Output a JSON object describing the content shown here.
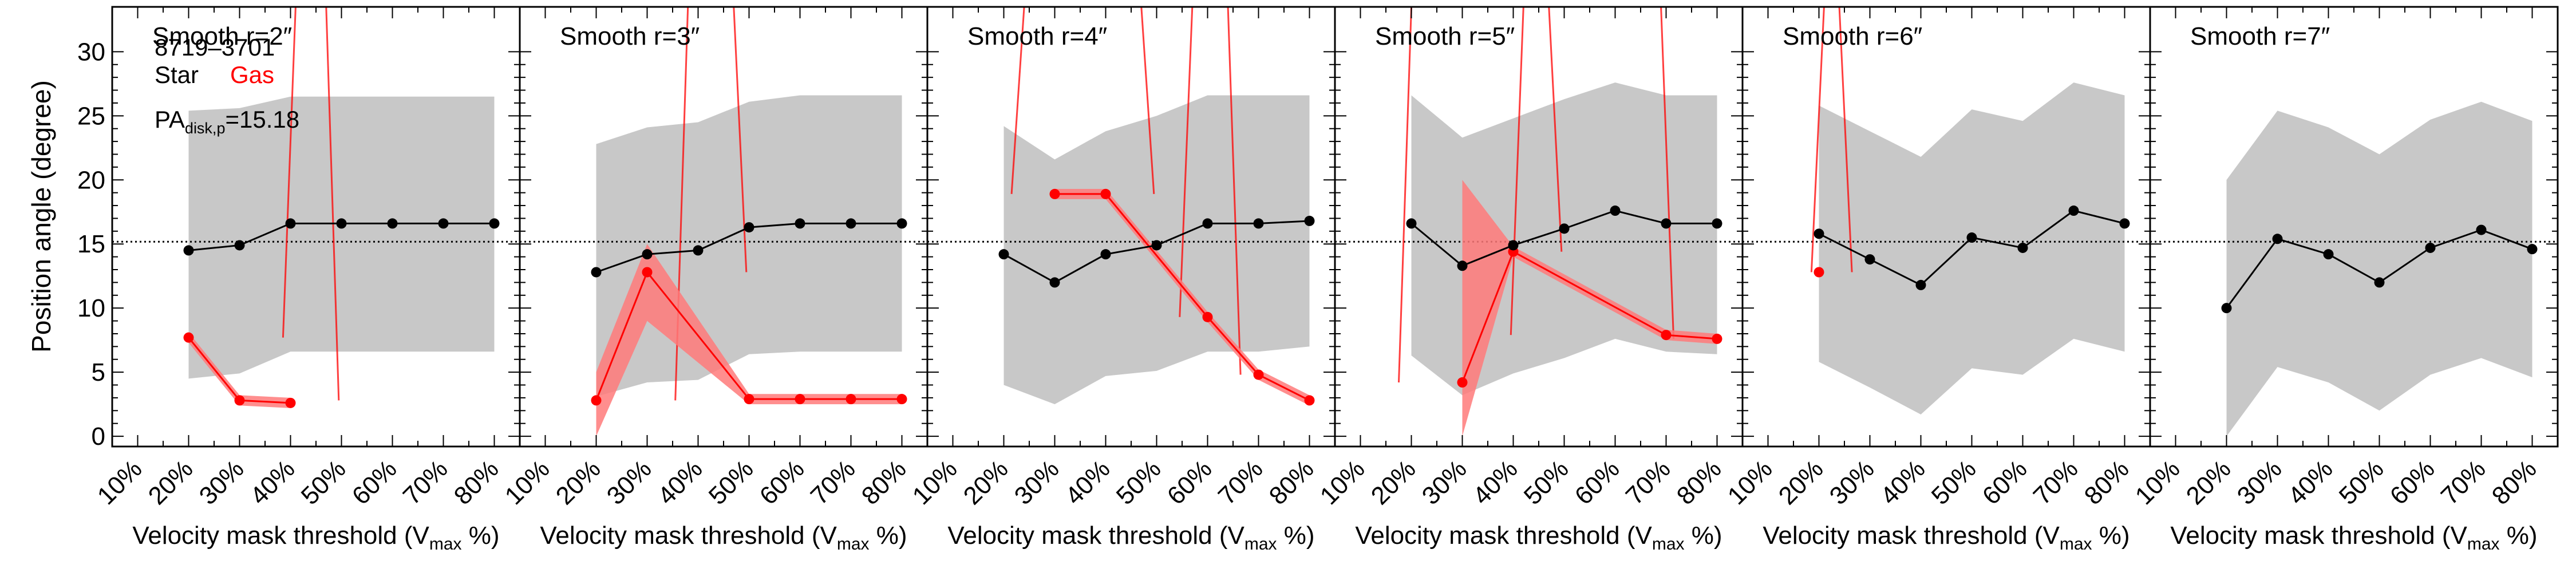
{
  "ylabel": "Position angle (degree)",
  "xlabel_main": "Velocity mask threshold (V",
  "xlabel_sub": "max",
  "xlabel_tail": " %)",
  "xticks": [
    "10%",
    "20%",
    "30%",
    "40%",
    "50%",
    "60%",
    "70%",
    "80%"
  ],
  "yticks": [
    "0",
    "5",
    "10",
    "15",
    "20",
    "25",
    "30"
  ],
  "info": {
    "galaxy": "8719–3701",
    "star_label": "Star",
    "gas_label": "Gas",
    "pa_main": "PA",
    "pa_sub": "disk,p",
    "pa_value": "=15.18"
  },
  "colors": {
    "star": "#000000",
    "gas": "#ff0000",
    "gas_band": "#ff7a7a",
    "band": "#c8c8c8"
  },
  "chart_data": [
    {
      "type": "line",
      "title": "Smooth r=2″",
      "ylim": [
        -0.8,
        33.5
      ],
      "xlim": [
        0.05,
        0.85
      ],
      "x": [
        0.2,
        0.3,
        0.4,
        0.5,
        0.6,
        0.7,
        0.8
      ],
      "pa_disk": 15.18,
      "band": {
        "lower": [
          4.5,
          4.9,
          6.6,
          6.6,
          6.6,
          6.6,
          6.6
        ],
        "upper": [
          25.4,
          25.6,
          26.5,
          26.5,
          26.5,
          26.5,
          26.5
        ]
      },
      "series": [
        {
          "name": "Star",
          "x": [
            0.2,
            0.3,
            0.4,
            0.5,
            0.6,
            0.7,
            0.8
          ],
          "values": [
            14.5,
            14.9,
            16.6,
            16.6,
            16.6,
            16.6,
            16.6
          ]
        },
        {
          "name": "Gas",
          "x": [
            0.2,
            0.3,
            0.4
          ],
          "values": [
            7.7,
            2.8,
            2.6
          ],
          "lower": [
            7.3,
            2.4,
            2.2
          ],
          "upper": [
            8.1,
            3.2,
            3.0
          ],
          "escape": [
            0.41,
            0.47
          ]
        }
      ]
    },
    {
      "type": "line",
      "title": "Smooth r=3″",
      "ylim": [
        -0.8,
        33.5
      ],
      "xlim": [
        0.05,
        0.85
      ],
      "x": [
        0.2,
        0.3,
        0.4,
        0.5,
        0.6,
        0.7,
        0.8
      ],
      "pa_disk": 15.18,
      "band": {
        "lower": [
          3.1,
          4.2,
          4.4,
          6.4,
          6.6,
          6.6,
          6.6
        ],
        "upper": [
          22.8,
          24.1,
          24.5,
          26.1,
          26.6,
          26.6,
          26.6
        ]
      },
      "series": [
        {
          "name": "Star",
          "x": [
            0.2,
            0.3,
            0.4,
            0.5,
            0.6,
            0.7,
            0.8
          ],
          "values": [
            12.8,
            14.2,
            14.5,
            16.3,
            16.6,
            16.6,
            16.6
          ]
        },
        {
          "name": "Gas",
          "x": [
            0.2,
            0.3,
            0.5,
            0.6,
            0.7,
            0.8
          ],
          "values": [
            2.8,
            12.8,
            2.9,
            2.9,
            2.9,
            2.9
          ],
          "lower": [
            0.0,
            9.0,
            2.5,
            2.5,
            2.5,
            2.5
          ],
          "upper": [
            5.0,
            15.0,
            3.3,
            3.3,
            3.3,
            3.3
          ],
          "escape": [
            0.38,
            0.47
          ]
        }
      ]
    },
    {
      "type": "line",
      "title": "Smooth r=4″",
      "ylim": [
        -0.8,
        33.5
      ],
      "xlim": [
        0.05,
        0.85
      ],
      "x": [
        0.2,
        0.3,
        0.4,
        0.5,
        0.6,
        0.7,
        0.8
      ],
      "pa_disk": 15.18,
      "band": {
        "lower": [
          4.0,
          2.5,
          4.7,
          5.1,
          6.6,
          6.6,
          7.0
        ],
        "upper": [
          24.2,
          21.6,
          23.8,
          25.0,
          26.6,
          26.6,
          26.6
        ]
      },
      "series": [
        {
          "name": "Star",
          "x": [
            0.2,
            0.3,
            0.4,
            0.5,
            0.6,
            0.7,
            0.8
          ],
          "values": [
            14.2,
            12.0,
            14.2,
            14.9,
            16.6,
            16.6,
            16.8
          ]
        },
        {
          "name": "Gas",
          "x": [
            0.3,
            0.4,
            0.6,
            0.7,
            0.8
          ],
          "values": [
            18.9,
            18.9,
            9.3,
            4.8,
            2.8
          ],
          "lower": [
            18.5,
            18.5,
            8.9,
            4.4,
            2.4
          ],
          "upper": [
            19.3,
            19.3,
            9.7,
            5.2,
            3.2
          ],
          "escape": [
            0.24,
            0.47,
            0.57,
            0.64
          ]
        }
      ]
    },
    {
      "type": "line",
      "title": "Smooth r=5″",
      "ylim": [
        -0.8,
        33.5
      ],
      "xlim": [
        0.05,
        0.85
      ],
      "x": [
        0.2,
        0.3,
        0.4,
        0.5,
        0.6,
        0.7,
        0.8
      ],
      "pa_disk": 15.18,
      "band": {
        "lower": [
          6.3,
          3.2,
          4.9,
          6.1,
          7.6,
          6.6,
          6.4
        ],
        "upper": [
          26.6,
          23.3,
          24.8,
          26.3,
          27.6,
          26.6,
          26.6
        ]
      },
      "series": [
        {
          "name": "Star",
          "x": [
            0.2,
            0.3,
            0.4,
            0.5,
            0.6,
            0.7,
            0.8
          ],
          "values": [
            16.6,
            13.3,
            14.9,
            16.2,
            17.6,
            16.6,
            16.6
          ]
        },
        {
          "name": "Gas",
          "x": [
            0.3,
            0.4,
            0.7,
            0.8
          ],
          "values": [
            4.2,
            14.4,
            7.9,
            7.6
          ],
          "lower": [
            0.0,
            14.0,
            7.5,
            7.2
          ],
          "upper": [
            20.0,
            14.8,
            8.3,
            8.0
          ],
          "escape": [
            0.2,
            0.47,
            0.42,
            0.69
          ]
        }
      ]
    },
    {
      "type": "line",
      "title": "Smooth r=6″",
      "ylim": [
        -0.8,
        33.5
      ],
      "xlim": [
        0.05,
        0.85
      ],
      "x": [
        0.2,
        0.3,
        0.4,
        0.5,
        0.6,
        0.7,
        0.8
      ],
      "pa_disk": 15.18,
      "band": {
        "lower": [
          5.8,
          3.8,
          1.7,
          5.3,
          4.8,
          7.6,
          6.6
        ],
        "upper": [
          25.8,
          23.8,
          21.8,
          25.5,
          24.6,
          27.6,
          26.6
        ]
      },
      "series": [
        {
          "name": "Star",
          "x": [
            0.2,
            0.3,
            0.4,
            0.5,
            0.6,
            0.7,
            0.8
          ],
          "values": [
            15.8,
            13.8,
            11.8,
            15.5,
            14.7,
            17.6,
            16.6
          ]
        },
        {
          "name": "Gas",
          "x": [
            0.2
          ],
          "values": [
            12.8
          ],
          "lower": [
            9.0
          ],
          "upper": [
            16.0
          ],
          "escape": [
            0.21,
            0.24
          ]
        }
      ]
    },
    {
      "type": "line",
      "title": "Smooth r=7″",
      "ylim": [
        -0.8,
        33.5
      ],
      "xlim": [
        0.05,
        0.85
      ],
      "x": [
        0.2,
        0.3,
        0.4,
        0.5,
        0.6,
        0.7,
        0.8
      ],
      "pa_disk": 15.18,
      "band": {
        "lower": [
          0.0,
          5.4,
          4.2,
          2.0,
          4.8,
          6.1,
          4.6
        ],
        "upper": [
          20.0,
          25.4,
          24.1,
          22.0,
          24.7,
          26.1,
          24.6
        ]
      },
      "series": [
        {
          "name": "Star",
          "x": [
            0.2,
            0.3,
            0.4,
            0.5,
            0.6,
            0.7,
            0.8
          ],
          "values": [
            10.0,
            15.4,
            14.2,
            12.0,
            14.7,
            16.1,
            14.6
          ]
        }
      ]
    }
  ]
}
